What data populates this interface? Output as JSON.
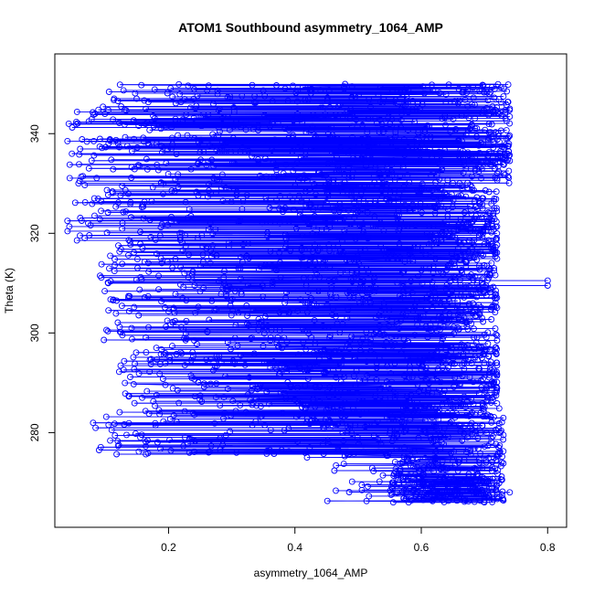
{
  "chart_data": {
    "type": "scatter",
    "title": "ATOM1 Southbound asymmetry_1064_AMP",
    "xlabel": "asymmetry_1064_AMP",
    "ylabel": "Theta (K)",
    "xlim": [
      0.02,
      0.83
    ],
    "ylim": [
      261,
      356
    ],
    "xticks": [
      0.2,
      0.4,
      0.6,
      0.8
    ],
    "yticks": [
      280,
      300,
      320,
      340
    ],
    "xtick_labels": [
      "0.2",
      "0.4",
      "0.6",
      "0.8"
    ],
    "ytick_labels": [
      "280",
      "300",
      "320",
      "340"
    ],
    "grid": false,
    "legend": "none",
    "marker": "open-circle",
    "connected": true,
    "series_color": "#0000ff",
    "theta_range": [
      266,
      350
    ],
    "x_range": [
      0.04,
      0.8
    ],
    "note_points": [
      {
        "x": 0.8,
        "y": 310.5
      },
      {
        "x": 0.8,
        "y": 309.5
      },
      {
        "x": 0.09,
        "y": 276.5
      },
      {
        "x": 0.74,
        "y": 268
      },
      {
        "x": 0.58,
        "y": 266
      },
      {
        "x": 0.7,
        "y": 266
      },
      {
        "x": 0.74,
        "y": 345
      },
      {
        "x": 0.04,
        "y": 338.5
      },
      {
        "x": 0.04,
        "y": 322.5
      }
    ]
  }
}
